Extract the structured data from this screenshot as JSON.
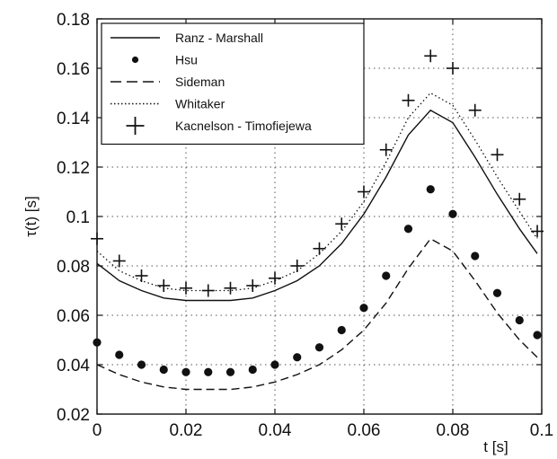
{
  "chart_data": {
    "type": "line",
    "title": "",
    "xlabel": "t [s]",
    "ylabel": "τ(t) [s]",
    "xlim": [
      0,
      0.1
    ],
    "ylim": [
      0.02,
      0.18
    ],
    "grid": true,
    "legend_position": "top-left",
    "x_ticks": [
      "0",
      "0.02",
      "0.04",
      "0.06",
      "0.08",
      "0.1"
    ],
    "y_ticks": [
      "0.02",
      "0.04",
      "0.06",
      "0.08",
      "0.1",
      "0.12",
      "0.14",
      "0.16",
      "0.18"
    ],
    "x": [
      0,
      0.005,
      0.01,
      0.015,
      0.02,
      0.025,
      0.03,
      0.035,
      0.04,
      0.045,
      0.05,
      0.055,
      0.06,
      0.065,
      0.07,
      0.075,
      0.08,
      0.085,
      0.09,
      0.095,
      0.099
    ],
    "series": [
      {
        "name": "Ranz - Marshall",
        "style": "solid",
        "values": [
          0.081,
          0.074,
          0.07,
          0.067,
          0.066,
          0.066,
          0.066,
          0.067,
          0.07,
          0.074,
          0.08,
          0.089,
          0.101,
          0.116,
          0.133,
          0.143,
          0.138,
          0.124,
          0.109,
          0.095,
          0.085
        ]
      },
      {
        "name": "Hsu",
        "style": "dots",
        "values": [
          0.049,
          0.044,
          0.04,
          0.038,
          0.037,
          0.037,
          0.037,
          0.038,
          0.04,
          0.043,
          0.047,
          0.054,
          0.063,
          0.076,
          0.095,
          0.111,
          0.101,
          0.084,
          0.069,
          0.058,
          0.052
        ]
      },
      {
        "name": "Sideman",
        "style": "dashed",
        "values": [
          0.04,
          0.036,
          0.033,
          0.031,
          0.03,
          0.03,
          0.03,
          0.031,
          0.033,
          0.036,
          0.04,
          0.046,
          0.054,
          0.065,
          0.079,
          0.091,
          0.086,
          0.074,
          0.061,
          0.05,
          0.043
        ]
      },
      {
        "name": "Whitaker",
        "style": "dotted",
        "values": [
          0.086,
          0.078,
          0.074,
          0.071,
          0.07,
          0.07,
          0.07,
          0.071,
          0.074,
          0.078,
          0.085,
          0.094,
          0.106,
          0.122,
          0.14,
          0.15,
          0.145,
          0.131,
          0.116,
          0.102,
          0.091
        ]
      },
      {
        "name": "Kacnelson - Timofiejewa",
        "style": "plus",
        "values": [
          0.091,
          0.082,
          0.076,
          0.072,
          0.071,
          0.07,
          0.071,
          0.072,
          0.075,
          0.08,
          0.087,
          0.097,
          0.11,
          0.127,
          0.147,
          0.165,
          0.16,
          0.143,
          0.125,
          0.107,
          0.094
        ]
      }
    ]
  }
}
